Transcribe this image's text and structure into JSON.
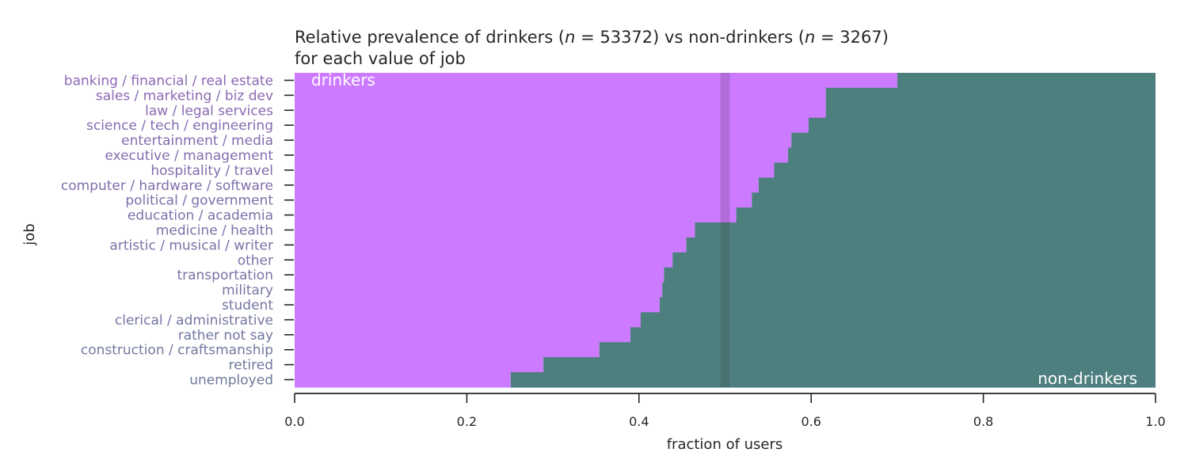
{
  "chart_data": {
    "type": "bar",
    "orientation": "horizontal-stacked",
    "title_line1_prefix": "Relative prevalence of drinkers (",
    "title_n_symbol": "n",
    "title_n1_text": " = 53372",
    "title_mid": ") vs non-drinkers (",
    "title_n2_text": " = 3267",
    "title_line1_suffix": ")",
    "title_line2": "for each value of job",
    "xlabel": "fraction of users",
    "ylabel": "job",
    "xlim": [
      0,
      1
    ],
    "xticks": [
      "0.0",
      "0.2",
      "0.4",
      "0.6",
      "0.8",
      "1.0"
    ],
    "reference_line_x": 0.5,
    "series": [
      {
        "name": "drinkers",
        "color": "#cc7aff"
      },
      {
        "name": "non-drinkers",
        "color": "#4d7f7f"
      }
    ],
    "categories": [
      "banking / financial / real estate",
      "sales / marketing / biz dev",
      "law / legal services",
      "science / tech / engineering",
      "entertainment / media",
      "executive / management",
      "hospitality / travel",
      "computer / hardware / software",
      "political / government",
      "education / academia",
      "medicine / health",
      "artistic / musical / writer",
      "other",
      "transportation",
      "military",
      "student",
      "clerical / administrative",
      "rather not say",
      "construction / craftsmanship",
      "retired",
      "unemployed"
    ],
    "drinker_fraction": [
      0.7,
      0.617,
      0.617,
      0.597,
      0.577,
      0.573,
      0.557,
      0.539,
      0.531,
      0.513,
      0.465,
      0.455,
      0.439,
      0.429,
      0.427,
      0.424,
      0.402,
      0.39,
      0.354,
      0.289,
      0.251
    ],
    "label_colors": {
      "top": "#8a68b4",
      "bottom": "#6d7a9c"
    }
  }
}
